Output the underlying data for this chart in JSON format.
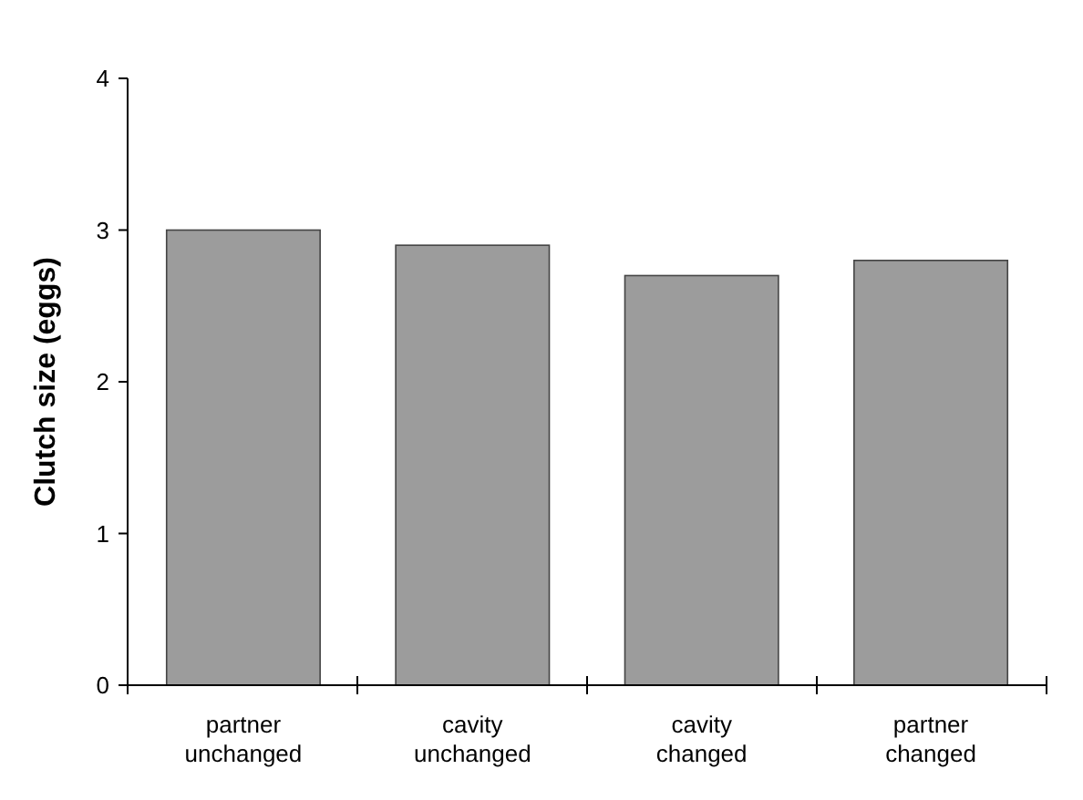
{
  "chart_data": {
    "type": "bar",
    "ylabel": "Clutch size  (eggs)",
    "categories": [
      "partner\nunchanged",
      "cavity\nunchanged",
      "cavity\nchanged",
      "partner\nchanged"
    ],
    "values": [
      3.0,
      2.9,
      2.7,
      2.8
    ],
    "color": "#9c9c9c",
    "ylim": [
      0,
      4
    ],
    "yticks": [
      0,
      1,
      2,
      3,
      4
    ],
    "grid": false
  }
}
